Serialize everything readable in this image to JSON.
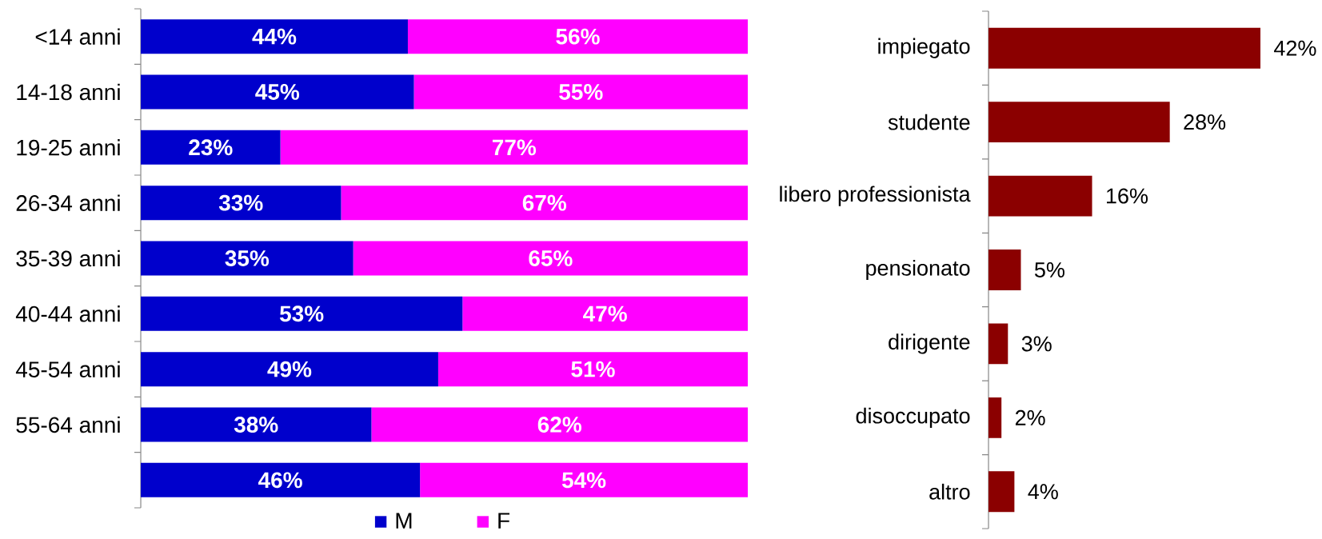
{
  "chart_data": [
    {
      "type": "bar",
      "orientation": "horizontal",
      "stacked": true,
      "categories": [
        "<14 anni",
        "14-18 anni",
        "19-25 anni",
        "26-34 anni",
        "35-39 anni",
        "40-44 anni",
        "45-54 anni",
        "55-64 anni",
        null
      ],
      "series": [
        {
          "name": "M",
          "color": "#0000cc",
          "values": [
            44,
            45,
            23,
            33,
            35,
            53,
            49,
            38,
            46
          ],
          "value_labels": [
            "44%",
            "45%",
            "23%",
            "33%",
            "35%",
            "53%",
            "49%",
            "38%",
            "46%"
          ]
        },
        {
          "name": "F",
          "color": "#ff00ff",
          "values": [
            56,
            55,
            77,
            67,
            65,
            47,
            51,
            62,
            54
          ],
          "value_labels": [
            "56%",
            "55%",
            "77%",
            "67%",
            "65%",
            "47%",
            "51%",
            "62%",
            "54%"
          ]
        }
      ],
      "legend": "bottom",
      "tick_labels": "y"
    },
    {
      "type": "bar",
      "orientation": "horizontal",
      "categories": [
        "impiegato",
        "studente",
        "libero professionista",
        "pensionato",
        "dirigente",
        "disoccupato",
        "altro"
      ],
      "values": [
        42,
        28,
        16,
        5,
        3,
        2,
        4
      ],
      "value_labels": [
        "42%",
        "28%",
        "16%",
        "5%",
        "3%",
        "2%",
        "4%"
      ],
      "color": "#8b0000",
      "tick_labels": "y"
    }
  ]
}
